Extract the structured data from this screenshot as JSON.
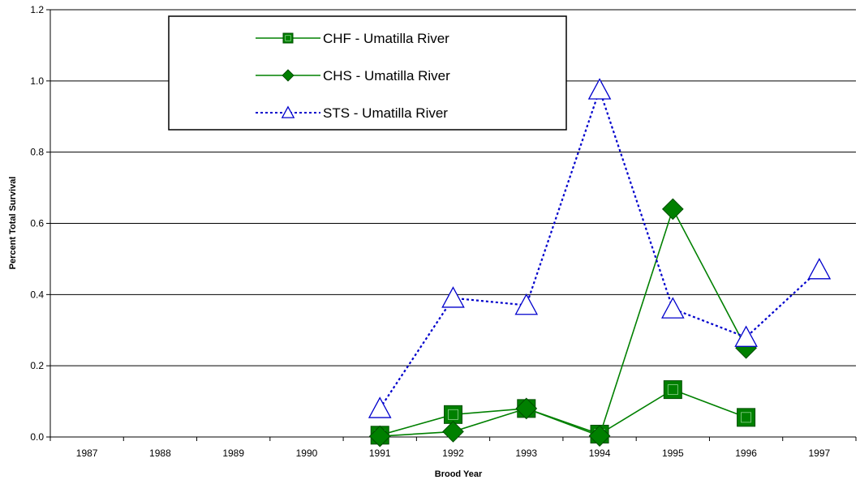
{
  "chart_data": {
    "type": "line",
    "title": "",
    "xlabel": "Brood Year",
    "ylabel": "Percent Total Survival",
    "categories": [
      "1987",
      "1988",
      "1989",
      "1990",
      "1991",
      "1992",
      "1993",
      "1994",
      "1995",
      "1996",
      "1997"
    ],
    "ylim": [
      0,
      1.2
    ],
    "yticks": [
      "0.0",
      "0.2",
      "0.4",
      "0.6",
      "0.8",
      "1.0",
      "1.2"
    ],
    "grid": true,
    "legend_position": "top-left",
    "series": [
      {
        "name": "CHF -  Umatilla River",
        "marker": "square",
        "line_style": "solid",
        "color": "#008000",
        "values": [
          null,
          null,
          null,
          null,
          0.005,
          0.063,
          0.08,
          0.008,
          0.133,
          0.055,
          null
        ]
      },
      {
        "name": "CHS -  Umatilla River",
        "marker": "diamond",
        "line_style": "solid",
        "color": "#008000",
        "values": [
          null,
          null,
          null,
          null,
          0.002,
          0.015,
          0.08,
          0.003,
          0.64,
          0.25,
          null
        ]
      },
      {
        "name": "STS -  Umatilla River",
        "marker": "triangle-open",
        "line_style": "dotted",
        "color": "#0000cc",
        "values": [
          null,
          null,
          null,
          null,
          0.08,
          0.39,
          0.37,
          0.975,
          0.36,
          0.28,
          0.47
        ]
      }
    ]
  }
}
